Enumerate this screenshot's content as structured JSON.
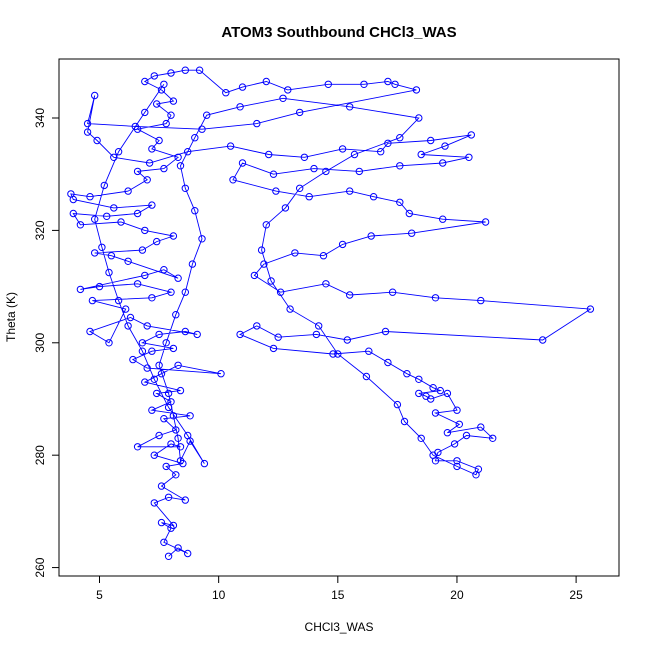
{
  "chart_data": {
    "type": "scatter",
    "title": "ATOM3 Southbound CHCl3_WAS",
    "xlabel": "CHCl3_WAS",
    "ylabel": "Theta (K)",
    "xlim": [
      3.3,
      26.8
    ],
    "ylim": [
      258.5,
      350.5
    ],
    "xticks": [
      5,
      10,
      15,
      20,
      25
    ],
    "yticks": [
      260,
      280,
      300,
      320,
      340
    ],
    "grid": false,
    "legend": "none",
    "style": {
      "color": "#0000ff",
      "marker": "open-circle",
      "connect_points": true
    },
    "series": [
      {
        "points": [
          [
            7.9,
            262.0
          ],
          [
            8.3,
            263.5
          ],
          [
            8.7,
            262.5
          ],
          [
            7.7,
            264.5
          ],
          [
            8.0,
            267.0
          ],
          [
            7.6,
            268.0
          ],
          [
            8.1,
            267.5
          ],
          [
            7.3,
            271.5
          ],
          [
            7.9,
            272.5
          ],
          [
            8.6,
            272.0
          ],
          [
            7.6,
            274.5
          ],
          [
            8.2,
            276.5
          ],
          [
            7.8,
            278.0
          ],
          [
            8.5,
            278.5
          ],
          [
            7.3,
            280.0
          ],
          [
            8.0,
            282.0
          ],
          [
            8.4,
            281.5
          ],
          [
            6.6,
            281.5
          ],
          [
            7.5,
            283.5
          ],
          [
            8.2,
            284.5
          ],
          [
            7.7,
            286.5
          ],
          [
            8.8,
            287.0
          ],
          [
            7.2,
            288.0
          ],
          [
            8.0,
            289.5
          ],
          [
            7.4,
            291.0
          ],
          [
            8.4,
            291.5
          ],
          [
            6.9,
            293.0
          ],
          [
            7.6,
            294.5
          ],
          [
            8.3,
            296.0
          ],
          [
            10.1,
            294.5
          ],
          [
            7.0,
            295.5
          ],
          [
            6.4,
            297.0
          ],
          [
            7.2,
            298.5
          ],
          [
            8.1,
            299.0
          ],
          [
            6.8,
            300.0
          ],
          [
            7.5,
            301.5
          ],
          [
            8.6,
            302.0
          ],
          [
            9.1,
            301.5
          ],
          [
            7.0,
            303.0
          ],
          [
            6.3,
            304.5
          ],
          [
            4.6,
            302.0
          ],
          [
            5.4,
            300.0
          ],
          [
            6.1,
            306.0
          ],
          [
            4.7,
            307.5
          ],
          [
            7.2,
            308.0
          ],
          [
            8.0,
            309.0
          ],
          [
            6.6,
            310.5
          ],
          [
            5.0,
            310.0
          ],
          [
            4.2,
            309.5
          ],
          [
            6.9,
            312.0
          ],
          [
            7.7,
            313.0
          ],
          [
            8.3,
            311.5
          ],
          [
            6.2,
            314.5
          ],
          [
            5.5,
            315.5
          ],
          [
            4.8,
            316.0
          ],
          [
            6.8,
            316.5
          ],
          [
            7.4,
            318.0
          ],
          [
            8.1,
            319.0
          ],
          [
            6.9,
            320.0
          ],
          [
            5.9,
            321.5
          ],
          [
            4.2,
            321.0
          ],
          [
            3.9,
            323.0
          ],
          [
            5.3,
            322.5
          ],
          [
            6.6,
            323.0
          ],
          [
            7.2,
            324.5
          ],
          [
            5.6,
            324.0
          ],
          [
            3.9,
            325.5
          ],
          [
            3.8,
            326.5
          ],
          [
            4.6,
            326.0
          ],
          [
            6.2,
            327.0
          ],
          [
            7.0,
            329.0
          ],
          [
            6.6,
            330.5
          ],
          [
            7.7,
            331.0
          ],
          [
            8.3,
            333.0
          ],
          [
            7.2,
            334.5
          ],
          [
            7.5,
            336.0
          ],
          [
            6.6,
            338.0
          ],
          [
            7.8,
            339.0
          ],
          [
            8.0,
            340.5
          ],
          [
            7.4,
            342.5
          ],
          [
            8.1,
            343.0
          ],
          [
            7.6,
            345.0
          ],
          [
            6.9,
            346.5
          ],
          [
            7.3,
            347.5
          ],
          [
            8.0,
            348.0
          ],
          [
            8.6,
            348.5
          ],
          [
            9.2,
            348.5
          ],
          [
            10.3,
            344.5
          ],
          [
            11.0,
            345.5
          ],
          [
            12.0,
            346.5
          ],
          [
            12.9,
            345.0
          ],
          [
            14.6,
            346.0
          ],
          [
            16.1,
            346.0
          ],
          [
            17.1,
            346.5
          ],
          [
            17.4,
            346.0
          ],
          [
            18.3,
            345.0
          ],
          [
            13.4,
            341.0
          ],
          [
            11.6,
            339.0
          ],
          [
            9.3,
            338.0
          ],
          [
            6.5,
            338.5
          ],
          [
            4.5,
            339.0
          ],
          [
            4.8,
            344.0
          ],
          [
            4.5,
            337.5
          ],
          [
            4.9,
            336.0
          ],
          [
            5.6,
            333.0
          ],
          [
            7.1,
            332.0
          ],
          [
            8.7,
            334.0
          ],
          [
            10.5,
            335.0
          ],
          [
            12.1,
            333.5
          ],
          [
            13.6,
            333.0
          ],
          [
            15.2,
            334.5
          ],
          [
            16.8,
            334.0
          ],
          [
            17.1,
            335.5
          ],
          [
            18.9,
            336.0
          ],
          [
            20.6,
            337.0
          ],
          [
            19.5,
            335.0
          ],
          [
            18.5,
            333.5
          ],
          [
            20.5,
            333.0
          ],
          [
            19.4,
            332.0
          ],
          [
            17.6,
            331.5
          ],
          [
            15.9,
            330.5
          ],
          [
            14.0,
            331.0
          ],
          [
            12.3,
            330.0
          ],
          [
            11.0,
            332.0
          ],
          [
            10.6,
            329.0
          ],
          [
            12.4,
            327.0
          ],
          [
            13.8,
            326.0
          ],
          [
            15.5,
            327.0
          ],
          [
            16.5,
            326.0
          ],
          [
            17.6,
            325.0
          ],
          [
            18.0,
            323.0
          ],
          [
            19.4,
            322.0
          ],
          [
            21.2,
            321.5
          ],
          [
            18.1,
            319.5
          ],
          [
            16.4,
            319.0
          ],
          [
            15.2,
            317.5
          ],
          [
            14.4,
            315.5
          ],
          [
            13.2,
            316.0
          ],
          [
            11.9,
            314.0
          ],
          [
            11.5,
            312.0
          ],
          [
            12.6,
            309.0
          ],
          [
            14.5,
            310.5
          ],
          [
            15.5,
            308.5
          ],
          [
            17.3,
            309.0
          ],
          [
            19.1,
            308.0
          ],
          [
            21.0,
            307.5
          ],
          [
            25.6,
            306.0
          ],
          [
            23.6,
            300.5
          ],
          [
            17.0,
            302.0
          ],
          [
            15.4,
            300.5
          ],
          [
            14.1,
            301.5
          ],
          [
            12.5,
            301.0
          ],
          [
            11.6,
            303.0
          ],
          [
            10.9,
            301.5
          ],
          [
            12.3,
            299.0
          ],
          [
            14.8,
            298.0
          ],
          [
            16.3,
            298.5
          ],
          [
            17.1,
            296.5
          ],
          [
            17.9,
            294.5
          ],
          [
            18.4,
            293.5
          ],
          [
            19.0,
            292.0
          ],
          [
            19.3,
            291.5
          ],
          [
            18.4,
            291.0
          ],
          [
            18.7,
            290.5
          ],
          [
            18.9,
            290.0
          ],
          [
            19.6,
            291.0
          ],
          [
            20.0,
            288.0
          ],
          [
            19.1,
            287.5
          ],
          [
            20.1,
            285.5
          ],
          [
            19.6,
            284.0
          ],
          [
            21.0,
            285.0
          ],
          [
            21.5,
            283.0
          ],
          [
            20.4,
            283.5
          ],
          [
            19.9,
            282.0
          ],
          [
            19.2,
            280.5
          ],
          [
            19.1,
            279.0
          ],
          [
            20.0,
            279.0
          ],
          [
            20.9,
            277.5
          ],
          [
            20.8,
            276.5
          ],
          [
            20.0,
            278.0
          ],
          [
            19.0,
            280.0
          ],
          [
            18.5,
            283.0
          ],
          [
            17.8,
            286.0
          ],
          [
            17.5,
            289.0
          ],
          [
            16.2,
            294.0
          ],
          [
            15.0,
            298.0
          ],
          [
            14.2,
            303.0
          ],
          [
            13.0,
            306.0
          ],
          [
            12.2,
            311.0
          ],
          [
            11.8,
            316.5
          ],
          [
            12.0,
            321.0
          ],
          [
            12.8,
            324.0
          ],
          [
            13.4,
            327.5
          ],
          [
            14.5,
            330.5
          ],
          [
            15.7,
            333.5
          ],
          [
            17.6,
            336.5
          ],
          [
            18.4,
            340.0
          ],
          [
            15.5,
            342.0
          ],
          [
            12.7,
            343.5
          ],
          [
            10.9,
            342.0
          ],
          [
            9.5,
            340.5
          ],
          [
            9.0,
            336.5
          ],
          [
            8.4,
            331.5
          ],
          [
            8.6,
            327.5
          ],
          [
            9.0,
            323.5
          ],
          [
            9.3,
            318.5
          ],
          [
            8.9,
            314.0
          ],
          [
            8.6,
            309.0
          ],
          [
            8.2,
            305.0
          ],
          [
            7.8,
            300.0
          ],
          [
            7.5,
            296.0
          ],
          [
            7.9,
            291.0
          ],
          [
            8.1,
            287.0
          ],
          [
            8.3,
            283.0
          ],
          [
            8.4,
            279.0
          ],
          [
            8.8,
            282.5
          ],
          [
            9.4,
            278.5
          ],
          [
            8.7,
            283.5
          ],
          [
            7.9,
            288.5
          ],
          [
            7.3,
            293.5
          ],
          [
            6.8,
            298.5
          ],
          [
            6.2,
            303.0
          ],
          [
            5.8,
            307.5
          ],
          [
            5.4,
            312.5
          ],
          [
            5.1,
            317.0
          ],
          [
            4.8,
            322.0
          ],
          [
            5.2,
            328.0
          ],
          [
            5.8,
            334.0
          ],
          [
            6.9,
            341.0
          ],
          [
            7.7,
            346.0
          ]
        ]
      }
    ]
  }
}
